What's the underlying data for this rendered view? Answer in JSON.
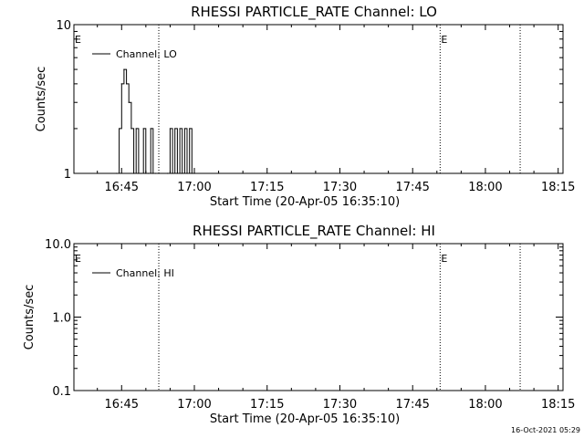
{
  "chart_data": [
    {
      "type": "line",
      "title": "RHESSI PARTICLE_RATE Channel: LO",
      "xlabel": "Start Time (20-Apr-05 16:35:10)",
      "ylabel": "Counts/sec",
      "yscale": "log",
      "ylim": [
        1,
        10
      ],
      "yticks": [
        "1",
        "10"
      ],
      "xlim": [
        "16:35:10",
        "18:16:00"
      ],
      "xticks": [
        "16:45",
        "17:00",
        "17:15",
        "17:30",
        "17:45",
        "18:00",
        "18:15"
      ],
      "legend": {
        "position": "top-left",
        "entries": [
          "Channel: LO"
        ]
      },
      "markers": [
        {
          "time": "16:35:10",
          "label": "E"
        },
        {
          "time": "16:52:40",
          "label": ""
        },
        {
          "time": "17:50:40",
          "label": "E"
        },
        {
          "time": "18:07:10",
          "label": ""
        }
      ],
      "series": [
        {
          "name": "Channel: LO",
          "x": [
            "16:44:00",
            "16:44:30",
            "16:45:00",
            "16:45:30",
            "16:46:00",
            "16:46:30",
            "16:47:00",
            "16:47:30",
            "16:48:00",
            "16:48:30",
            "16:49:00",
            "16:49:30",
            "16:50:00",
            "16:50:30",
            "16:51:00",
            "16:51:30",
            "16:52:00",
            "16:54:30",
            "16:55:00",
            "16:55:30",
            "16:56:00",
            "16:56:30",
            "16:57:00",
            "16:57:30",
            "16:58:00",
            "16:58:30",
            "16:59:00",
            "16:59:30",
            "17:00:00"
          ],
          "y": [
            1,
            2,
            4,
            5,
            4,
            3,
            2,
            1,
            2,
            1,
            1,
            2,
            1,
            1,
            2,
            1,
            1,
            1,
            2,
            1,
            2,
            1,
            2,
            1,
            2,
            1,
            2,
            1,
            1
          ]
        }
      ]
    },
    {
      "type": "line",
      "title": "RHESSI PARTICLE_RATE Channel: HI",
      "xlabel": "Start Time (20-Apr-05 16:35:10)",
      "ylabel": "Counts/sec",
      "yscale": "log",
      "ylim": [
        0.1,
        10
      ],
      "yticks": [
        "0.1",
        "1.0",
        "10.0"
      ],
      "xlim": [
        "16:35:10",
        "18:16:00"
      ],
      "xticks": [
        "16:45",
        "17:00",
        "17:15",
        "17:30",
        "17:45",
        "18:00",
        "18:15"
      ],
      "legend": {
        "position": "top-left",
        "entries": [
          "Channel: HI"
        ]
      },
      "markers": [
        {
          "time": "16:35:10",
          "label": "E"
        },
        {
          "time": "16:52:40",
          "label": ""
        },
        {
          "time": "17:50:40",
          "label": "E"
        },
        {
          "time": "18:07:10",
          "label": ""
        }
      ],
      "series": [
        {
          "name": "Channel: HI",
          "x": [],
          "y": []
        }
      ]
    }
  ],
  "footer": {
    "timestamp": "16-Oct-2021 05:29"
  }
}
